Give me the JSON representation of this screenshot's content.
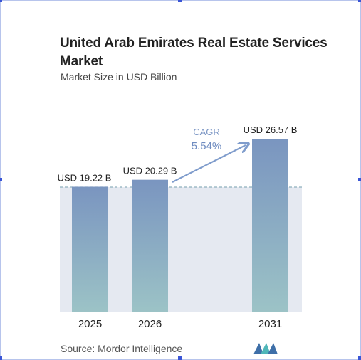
{
  "title": "United Arab Emirates Real Estate Services Market",
  "subtitle": "Market Size in USD Billion",
  "source": "Source:  Mordor Intelligence",
  "colors": {
    "bar_top": "#7a95c0",
    "bar_bottom": "#9cc3c6",
    "band": "#e5e9f1",
    "dash": "#8fb0bd",
    "arrow": "#7f9ccc",
    "cagr": "#7b96c4"
  },
  "chart_data": {
    "type": "bar",
    "categories": [
      "2025",
      "2026",
      "2031"
    ],
    "values": [
      19.22,
      20.29,
      26.57
    ],
    "value_labels": [
      "USD 19.22 B",
      "USD 20.29 B",
      "USD 26.57 B"
    ],
    "ylim": [
      0,
      26.57
    ],
    "cagr": {
      "label": "CAGR",
      "value": "5.54%"
    },
    "grid": false,
    "legend": "none"
  }
}
